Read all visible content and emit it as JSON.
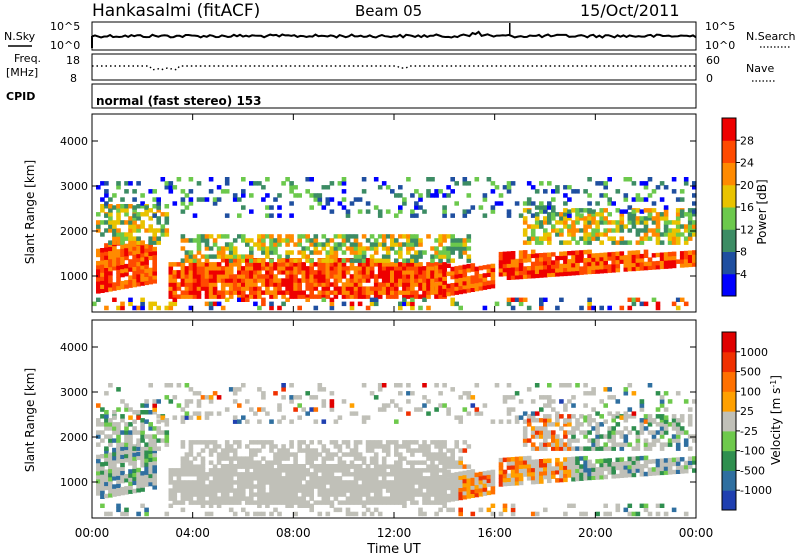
{
  "header": {
    "station": "Hankasalmi (fitACF)",
    "beam": "Beam 05",
    "date": "15/Oct/2011"
  },
  "noise_panel": {
    "left_label": "N.Sky",
    "right_label": "N.Search",
    "left_ticks": [
      "10^5",
      "10^0"
    ],
    "right_ticks": [
      "10^5",
      "10^0"
    ]
  },
  "freq_panel": {
    "left_label_line1": "Freq.",
    "left_label_line2": "[MHz]",
    "left_ticks": [
      "18",
      "8"
    ],
    "right_label": "Nave",
    "right_ticks": [
      "60",
      "0"
    ]
  },
  "cpid_panel": {
    "label": "CPID",
    "text": "normal (fast stereo) 153"
  },
  "chart_data": [
    {
      "type": "heatmap",
      "title": "Power",
      "xlabel": "Time UT",
      "ylabel": "Slant Range [km]",
      "x_ticks": [
        "00:00",
        "04:00",
        "08:00",
        "12:00",
        "16:00",
        "20:00",
        "00:00"
      ],
      "y_ticks": [
        1000,
        2000,
        3000,
        4000
      ],
      "ylim": [
        200,
        4600
      ],
      "colorbar": {
        "label": "Power [dB]",
        "ticks": [
          4,
          8,
          12,
          16,
          20,
          24,
          28
        ],
        "colors": [
          "#0000ff",
          "#1f4fa0",
          "#3c8c64",
          "#6cc94c",
          "#e9c300",
          "#ff8a00",
          "#ff4a00",
          "#ee0000"
        ]
      }
    },
    {
      "type": "heatmap",
      "title": "Velocity",
      "xlabel": "Time UT",
      "ylabel": "Slant Range [km]",
      "x_ticks": [
        "00:00",
        "04:00",
        "08:00",
        "12:00",
        "16:00",
        "20:00",
        "00:00"
      ],
      "y_ticks": [
        1000,
        2000,
        3000,
        4000
      ],
      "ylim": [
        200,
        4600
      ],
      "colorbar": {
        "label": "Velocity [m s-1]",
        "ticks": [
          1000,
          500,
          100,
          25,
          -25,
          -100,
          -500,
          -1000
        ],
        "colors": [
          "#1f3fb0",
          "#2f6fa0",
          "#2f8f4f",
          "#6ec94c",
          "#c0c0b8",
          "#ffa000",
          "#ff7000",
          "#f03000",
          "#e00000"
        ]
      }
    }
  ]
}
